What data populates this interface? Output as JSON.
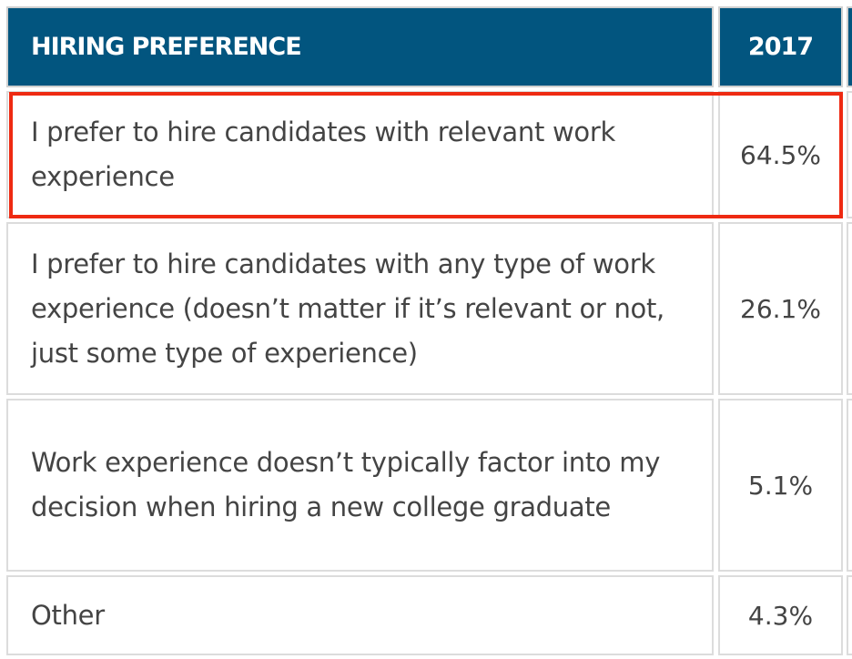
{
  "table": {
    "headers": [
      "HIRING PREFERENCE",
      "2017"
    ],
    "rows": [
      {
        "preference": "I prefer to hire candidates with relevant work experience",
        "value_2017": "64.5%",
        "highlighted": true
      },
      {
        "preference": "I prefer to hire candidates with any type of work experience (doesn’t matter if it’s relevant or not, just some type of experience)",
        "value_2017": "26.1%"
      },
      {
        "preference": "Work experience doesn’t typically factor into my decision when hiring a new college graduate",
        "value_2017": "5.1%"
      },
      {
        "preference": "Other",
        "value_2017": "4.3%"
      }
    ]
  },
  "colors": {
    "header_bg": "#02557f",
    "highlight": "#ee2a12"
  }
}
